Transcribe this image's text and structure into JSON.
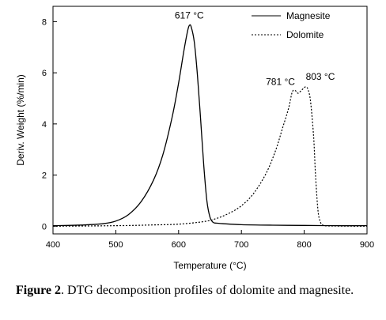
{
  "chart_data": {
    "type": "line",
    "xlabel": "Temperature (°C)",
    "ylabel": "Deriv. Weight (%/min)",
    "xlim": [
      400,
      900
    ],
    "ylim": [
      -0.3,
      8.6
    ],
    "x_ticks": [
      400,
      500,
      600,
      700,
      800,
      900
    ],
    "y_ticks": [
      0,
      2,
      4,
      6,
      8
    ],
    "grid": false,
    "legend_position": "top-right",
    "series": [
      {
        "name": "Magnesite",
        "style": "solid",
        "x": [
          400,
          450,
          480,
          500,
          520,
          540,
          560,
          575,
          590,
          600,
          608,
          614,
          617,
          620,
          625,
          630,
          635,
          640,
          645,
          650,
          655,
          660,
          670,
          700,
          750,
          800,
          850,
          900
        ],
        "y": [
          0.02,
          0.05,
          0.1,
          0.2,
          0.45,
          0.95,
          1.8,
          2.8,
          4.3,
          5.6,
          6.8,
          7.6,
          7.85,
          7.8,
          7.2,
          5.9,
          4.2,
          2.4,
          1.0,
          0.35,
          0.15,
          0.12,
          0.1,
          0.06,
          0.04,
          0.03,
          0.02,
          0.02
        ]
      },
      {
        "name": "Dolomite",
        "style": "dashed",
        "x": [
          400,
          500,
          560,
          600,
          640,
          660,
          680,
          700,
          720,
          740,
          755,
          765,
          775,
          781,
          786,
          790,
          795,
          800,
          803,
          806,
          810,
          815,
          818,
          822,
          826,
          830,
          840,
          900
        ],
        "y": [
          0.0,
          0.02,
          0.05,
          0.08,
          0.18,
          0.3,
          0.5,
          0.8,
          1.3,
          2.1,
          3.0,
          3.8,
          4.6,
          5.25,
          5.3,
          5.2,
          5.3,
          5.42,
          5.45,
          5.35,
          4.9,
          3.5,
          2.0,
          0.6,
          0.15,
          0.04,
          0.01,
          0.0
        ]
      }
    ],
    "annotations": [
      {
        "text": "617 °C",
        "x": 617,
        "y": 7.85
      },
      {
        "text": "781 °C",
        "x": 781,
        "y": 5.25
      },
      {
        "text": "803 °C",
        "x": 803,
        "y": 5.45
      }
    ]
  },
  "caption": {
    "label": "Figure 2",
    "text": ". DTG decomposition profiles of dolomite and magnesite."
  }
}
